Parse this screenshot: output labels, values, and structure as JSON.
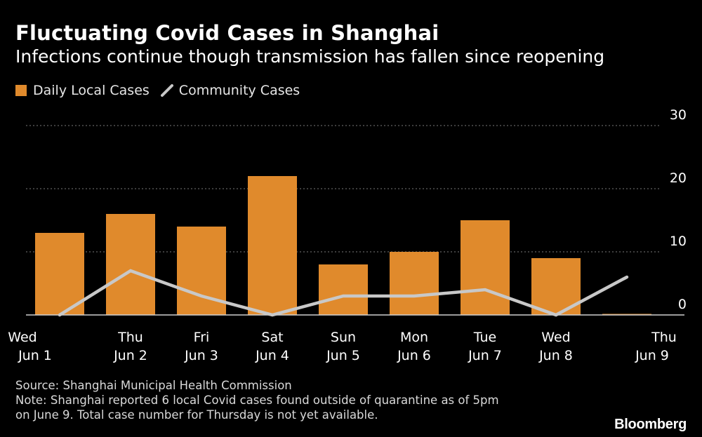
{
  "title": "Fluctuating Covid Cases in Shanghai",
  "subtitle": "Infections continue though transmission has fallen since reopening",
  "colors": {
    "bar": "#E08A2C",
    "line": "#C8C8C8",
    "grid": "#7a7a7a",
    "axis": "#d0d0d0",
    "background": "#000000"
  },
  "chart_data": {
    "type": "bar",
    "categories": [
      "Wed Jun 1",
      "Thu Jun 2",
      "Fri Jun 3",
      "Sat Jun 4",
      "Sun Jun 5",
      "Mon Jun 6",
      "Tue Jun 7",
      "Wed Jun 8",
      "Thu Jun 9"
    ],
    "tick_labels": [
      [
        "Wed",
        "Jun 1"
      ],
      [
        "Thu",
        "Jun 2"
      ],
      [
        "Fri",
        "Jun 3"
      ],
      [
        "Sat",
        "Jun 4"
      ],
      [
        "Sun",
        "Jun 5"
      ],
      [
        "Mon",
        "Jun 6"
      ],
      [
        "Tue",
        "Jun 7"
      ],
      [
        "Wed",
        "Jun 8"
      ],
      [
        "Thu",
        "Jun 9"
      ]
    ],
    "series": [
      {
        "name": "Daily Local Cases",
        "type": "bar",
        "values": [
          13,
          16,
          14,
          22,
          8,
          10,
          15,
          9,
          null
        ]
      },
      {
        "name": "Community Cases",
        "type": "line",
        "values": [
          0,
          7,
          3,
          0,
          3,
          3,
          4,
          0,
          6
        ]
      }
    ],
    "y_ticks": [
      "30",
      "20",
      "10",
      "0"
    ],
    "ylim": [
      0,
      30
    ],
    "grid": true,
    "legend": "top-left"
  },
  "legend": {
    "bar_label": "Daily Local Cases",
    "line_label": "Community Cases"
  },
  "footnote": {
    "source": "Source: Shanghai Municipal Health Commission",
    "note_line1": "Note: Shanghai reported 6 local Covid cases found outside of quarantine as of 5pm",
    "note_line2": "on June 9. Total case number for Thursday is not yet available."
  },
  "brand": "Bloomberg"
}
